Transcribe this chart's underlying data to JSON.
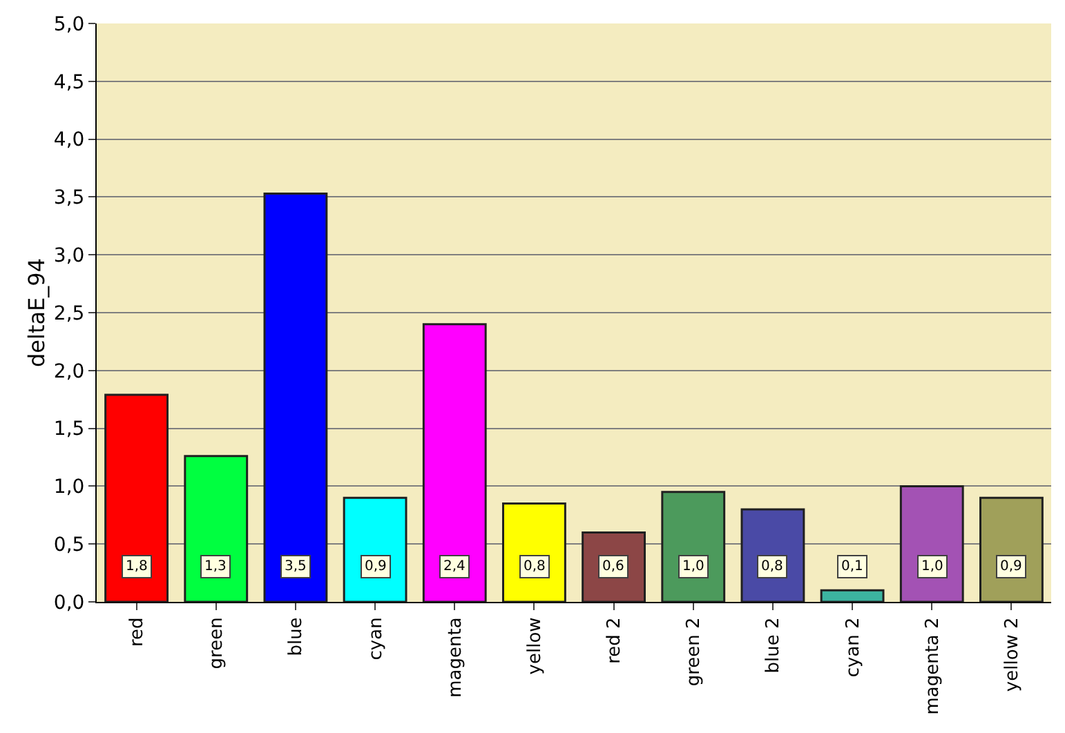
{
  "chart_data": {
    "type": "bar",
    "ylabel": "deltaE_94",
    "categories": [
      "red",
      "green",
      "blue",
      "cyan",
      "magenta",
      "yellow",
      "red 2",
      "green 2",
      "blue 2",
      "cyan 2",
      "magenta 2",
      "yellow 2"
    ],
    "values": [
      1.79,
      1.26,
      3.53,
      0.9,
      2.4,
      0.85,
      0.6,
      0.95,
      0.8,
      0.1,
      1.0,
      0.9
    ],
    "colors": [
      "#ff0000",
      "#00ff40",
      "#0000ff",
      "#00ffff",
      "#ff00ff",
      "#ffff00",
      "#8c4646",
      "#4c9a5c",
      "#4a4aa6",
      "#3cb4a0",
      "#a352b4",
      "#a0a05a"
    ],
    "value_labels": [
      "1,8",
      "1,3",
      "3,5",
      "0,9",
      "2,4",
      "0,8",
      "0,6",
      "1,0",
      "0,8",
      "0,1",
      "1,0",
      "0,9"
    ],
    "ylim": [
      0,
      5
    ],
    "yticks": [
      {
        "value": 0,
        "label": "0,0"
      },
      {
        "value": 0.5,
        "label": "0,5"
      },
      {
        "value": 1,
        "label": "1,0"
      },
      {
        "value": 1.5,
        "label": "1,5"
      },
      {
        "value": 2,
        "label": "2,0"
      },
      {
        "value": 2.5,
        "label": "2,5"
      },
      {
        "value": 3,
        "label": "3,0"
      },
      {
        "value": 3.5,
        "label": "3,5"
      },
      {
        "value": 4,
        "label": "4,0"
      },
      {
        "value": 4.5,
        "label": "4,5"
      },
      {
        "value": 5,
        "label": "5,0"
      }
    ],
    "grid": "y"
  }
}
